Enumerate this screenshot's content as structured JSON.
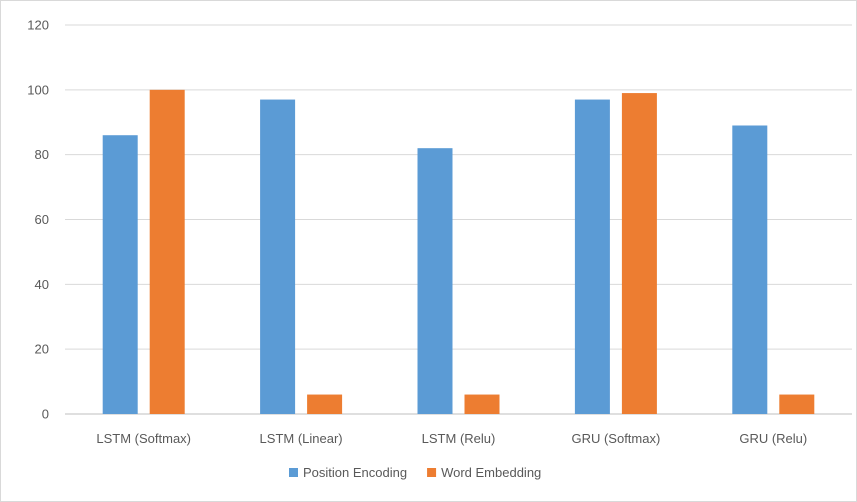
{
  "chart_data": {
    "type": "bar",
    "categories": [
      "LSTM (Softmax)",
      "LSTM (Linear)",
      "LSTM (Relu)",
      "GRU (Softmax)",
      "GRU (Relu)"
    ],
    "series": [
      {
        "name": "Position Encoding",
        "values": [
          86,
          97,
          82,
          97,
          89
        ],
        "color": "#5b9bd5"
      },
      {
        "name": "Word Embedding",
        "values": [
          100,
          6,
          6,
          99,
          6
        ],
        "color": "#ed7d31"
      }
    ],
    "yticks": [
      0,
      20,
      40,
      60,
      80,
      100,
      120
    ],
    "ylim": [
      0,
      120
    ],
    "grid": true,
    "legend_position": "bottom",
    "title": "",
    "xlabel": "",
    "ylabel": ""
  }
}
